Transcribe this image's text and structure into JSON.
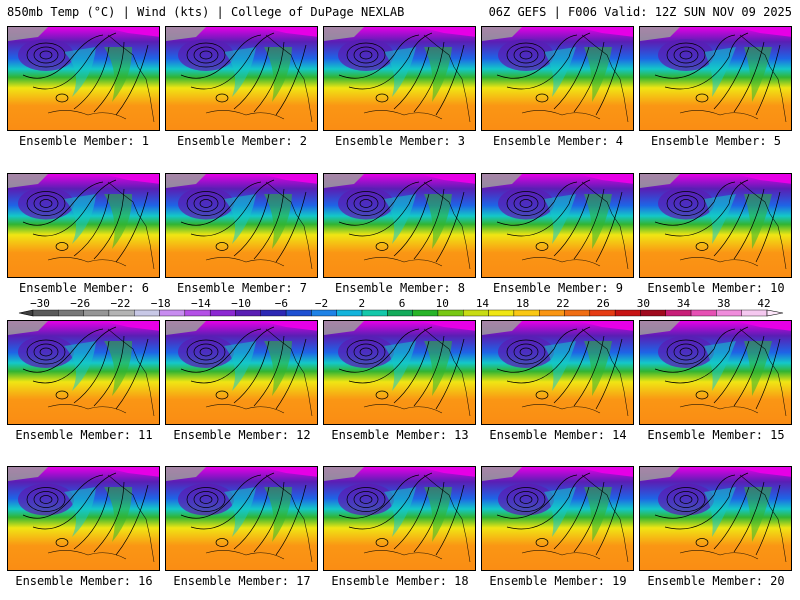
{
  "header": {
    "left": "850mb Temp (°C) | Wind (kts) | College of DuPage NEXLAB",
    "right": "06Z GEFS | F006 Valid: 12Z SUN NOV 09 2025"
  },
  "members": [
    {
      "label": "Ensemble Member: 1"
    },
    {
      "label": "Ensemble Member: 2"
    },
    {
      "label": "Ensemble Member: 3"
    },
    {
      "label": "Ensemble Member: 4"
    },
    {
      "label": "Ensemble Member: 5"
    },
    {
      "label": "Ensemble Member: 6"
    },
    {
      "label": "Ensemble Member: 7"
    },
    {
      "label": "Ensemble Member: 8"
    },
    {
      "label": "Ensemble Member: 9"
    },
    {
      "label": "Ensemble Member: 10"
    },
    {
      "label": "Ensemble Member: 11"
    },
    {
      "label": "Ensemble Member: 12"
    },
    {
      "label": "Ensemble Member: 13"
    },
    {
      "label": "Ensemble Member: 14"
    },
    {
      "label": "Ensemble Member: 15"
    },
    {
      "label": "Ensemble Member: 16"
    },
    {
      "label": "Ensemble Member: 17"
    },
    {
      "label": "Ensemble Member: 18"
    },
    {
      "label": "Ensemble Member: 19"
    },
    {
      "label": "Ensemble Member: 20"
    }
  ],
  "colorbar": {
    "ticks": [
      "−30",
      "−26",
      "−22",
      "−18",
      "−14",
      "−10",
      "−6",
      "−2",
      "2",
      "6",
      "10",
      "14",
      "18",
      "22",
      "26",
      "30",
      "34",
      "38",
      "42"
    ],
    "colors": [
      "#5a5a5a",
      "#787878",
      "#969696",
      "#b4b4b4",
      "#c8c8e6",
      "#c88cf0",
      "#b450e6",
      "#8c28d2",
      "#5a1eb4",
      "#2d28b4",
      "#1e50d2",
      "#1e82e6",
      "#14b4dc",
      "#14c8aa",
      "#14aa5a",
      "#28b428",
      "#78c814",
      "#c8dc14",
      "#f0e614",
      "#fac814",
      "#fa9614",
      "#f06e14",
      "#e63c14",
      "#c81414",
      "#a00a1e",
      "#c81e78",
      "#e650b4",
      "#f08cdc",
      "#f5c8f0"
    ]
  },
  "palette": {
    "cold_extreme": "#e600e6",
    "cold": "#5a1eb4",
    "cool": "#1e64e6",
    "cyan": "#14c8c8",
    "green": "#32b432",
    "yellow": "#f0e614",
    "warm": "#fa9614",
    "land_gray": "#9c9c9c",
    "contour": "#000000"
  }
}
